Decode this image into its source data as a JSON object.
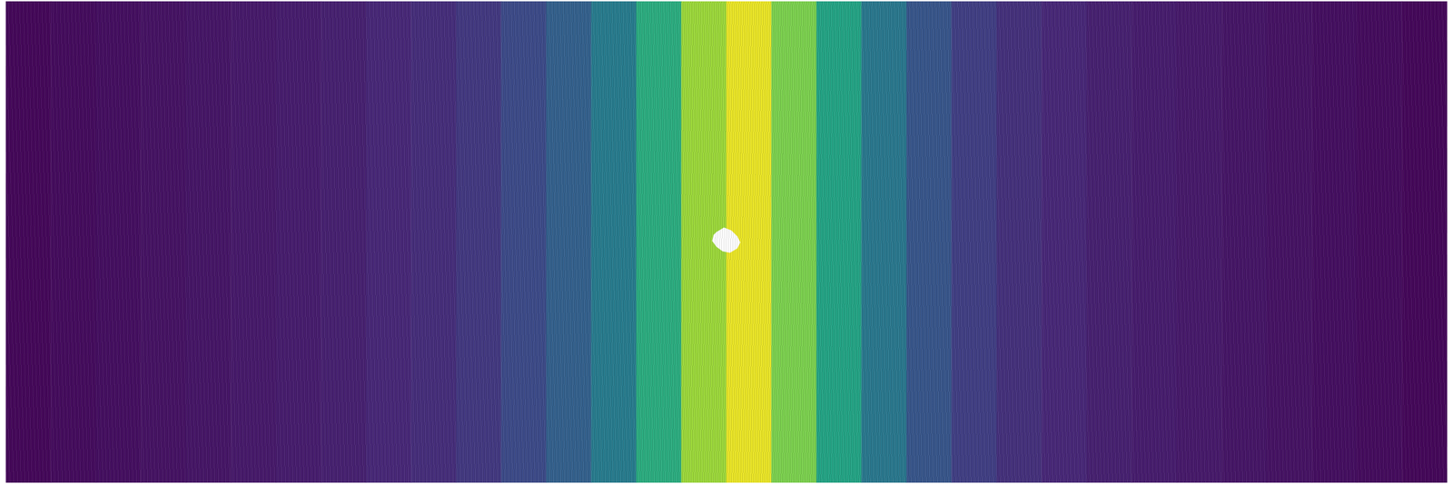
{
  "chart_data": {
    "type": "heatmap",
    "tick_labels": false,
    "grid": false,
    "x": [
      0,
      1,
      2,
      3,
      4,
      5,
      6,
      7,
      8,
      9,
      10,
      11,
      12,
      13,
      14,
      15,
      16,
      17,
      18,
      19,
      20,
      21,
      22,
      23,
      24,
      25,
      26,
      27,
      28,
      29,
      30,
      31
    ],
    "values": [
      0.02,
      0.03,
      0.04,
      0.05,
      0.06,
      0.07,
      0.08,
      0.09,
      0.11,
      0.13,
      0.17,
      0.23,
      0.31,
      0.42,
      0.62,
      0.85,
      0.97,
      0.8,
      0.58,
      0.4,
      0.27,
      0.19,
      0.14,
      0.11,
      0.09,
      0.08,
      0.07,
      0.06,
      0.05,
      0.04,
      0.03,
      0.02
    ],
    "color_range": [
      0,
      1
    ]
  }
}
